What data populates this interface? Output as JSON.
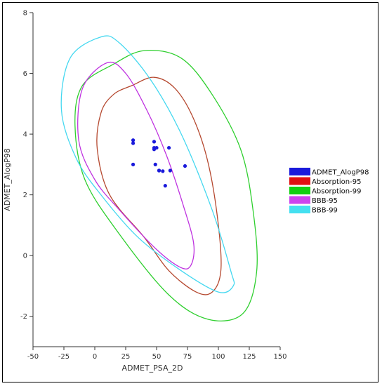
{
  "chart_data": {
    "type": "scatter",
    "xlabel": "ADMET_PSA_2D",
    "ylabel": "ADMET_AlogP98",
    "xlim": [
      -50,
      150
    ],
    "ylim": [
      -3,
      8
    ],
    "xticks": [
      -50,
      -25,
      0,
      25,
      50,
      75,
      100,
      125,
      150
    ],
    "yticks": [
      -2,
      0,
      2,
      4,
      6,
      8
    ],
    "grid": false,
    "legend_position": "right",
    "points": {
      "name": "ADMET_AlogP98",
      "color": "#1a1adb",
      "x": [
        31,
        31,
        31,
        48,
        48,
        48,
        50,
        49,
        52,
        52,
        55,
        57,
        60,
        61,
        73
      ],
      "y": [
        3.8,
        3.7,
        3.0,
        3.75,
        3.55,
        3.5,
        3.55,
        3.0,
        2.8,
        2.8,
        2.78,
        2.3,
        3.55,
        2.8,
        2.95
      ]
    },
    "ellipses": [
      {
        "name": "Absorption-95",
        "color": "#b5482f",
        "points": [
          [
            30,
            5.6
          ],
          [
            48,
            5.87
          ],
          [
            65,
            5.5
          ],
          [
            80,
            4.5
          ],
          [
            92,
            3.0
          ],
          [
            100,
            1.0
          ],
          [
            102,
            -0.5
          ],
          [
            95,
            -1.2
          ],
          [
            82,
            -1.2
          ],
          [
            60,
            -0.5
          ],
          [
            40,
            0.6
          ],
          [
            12,
            2.0
          ],
          [
            2,
            3.5
          ],
          [
            5,
            4.7
          ],
          [
            15,
            5.3
          ]
        ]
      },
      {
        "name": "Absorption-99",
        "color": "#2ecf2e",
        "points": [
          [
            15,
            6.3
          ],
          [
            40,
            6.75
          ],
          [
            70,
            6.5
          ],
          [
            95,
            5.3
          ],
          [
            118,
            3.5
          ],
          [
            128,
            1.5
          ],
          [
            131,
            -0.5
          ],
          [
            120,
            -1.9
          ],
          [
            92,
            -2.1
          ],
          [
            60,
            -1.3
          ],
          [
            20,
            0.7
          ],
          [
            -8,
            2.5
          ],
          [
            -16,
            4.3
          ],
          [
            -10,
            5.6
          ]
        ]
      },
      {
        "name": "BBB-95",
        "color": "#bf33e0",
        "points": [
          [
            -10,
            5.5
          ],
          [
            10,
            6.35
          ],
          [
            25,
            6.0
          ],
          [
            42,
            4.8
          ],
          [
            58,
            3.3
          ],
          [
            72,
            1.6
          ],
          [
            80,
            0.4
          ],
          [
            78,
            -0.3
          ],
          [
            70,
            -0.4
          ],
          [
            50,
            0.2
          ],
          [
            20,
            1.5
          ],
          [
            0,
            2.5
          ],
          [
            -13,
            3.8
          ]
        ]
      },
      {
        "name": "BBB-99",
        "color": "#45d8f0",
        "points": [
          [
            -20,
            6.5
          ],
          [
            5,
            7.2
          ],
          [
            20,
            7.0
          ],
          [
            45,
            5.8
          ],
          [
            70,
            4.0
          ],
          [
            95,
            1.5
          ],
          [
            110,
            -0.5
          ],
          [
            112,
            -1.0
          ],
          [
            100,
            -1.2
          ],
          [
            70,
            -0.5
          ],
          [
            35,
            0.6
          ],
          [
            5,
            2.0
          ],
          [
            -15,
            3.2
          ],
          [
            -27,
            4.8
          ]
        ]
      }
    ],
    "legend": [
      {
        "label": "ADMET_AlogP98",
        "color": "#1a1adb"
      },
      {
        "label": "Absorption-95",
        "color": "#e01010"
      },
      {
        "label": "Absorption-99",
        "color": "#10d010"
      },
      {
        "label": "BBB-95",
        "color": "#cc44ee"
      },
      {
        "label": "BBB-99",
        "color": "#44e0f0"
      }
    ]
  }
}
